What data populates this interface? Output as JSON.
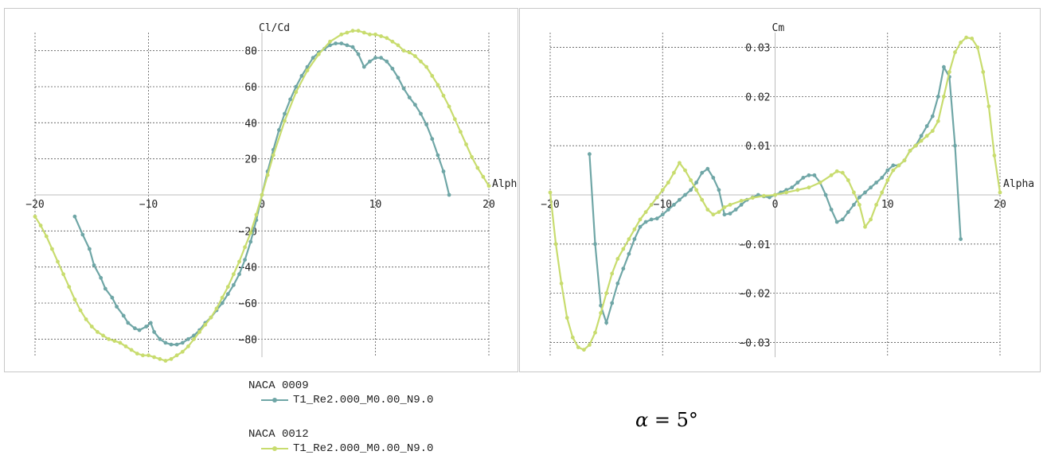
{
  "colors": {
    "series_a": "#6fa6a6",
    "series_b": "#c8dc6e",
    "grid": "#5a5a5a",
    "axis": "#bdbdbd"
  },
  "legend": {
    "groups": [
      {
        "airfoil": "NACA 0009",
        "label": "T1_Re2.000_M0.00_N9.0",
        "color": "#6fa6a6"
      },
      {
        "airfoil": "NACA 0012",
        "label": "T1_Re2.000_M0.00_N9.0",
        "color": "#c8dc6e"
      }
    ]
  },
  "formula": {
    "symbol": "α",
    "equals": "= 5°"
  },
  "chart_data": [
    {
      "type": "line",
      "title": "",
      "ylabel": "Cl/Cd",
      "xlabel": "Alpha",
      "xlim": [
        -20,
        20
      ],
      "ylim": [
        -90,
        90
      ],
      "xticks": [
        -20,
        -10,
        0,
        10,
        20
      ],
      "yticks": [
        -80,
        -60,
        -40,
        -20,
        0,
        20,
        40,
        60,
        80
      ],
      "grid": true,
      "series": [
        {
          "name": "T1_Re2.000_M0.00_N9.0",
          "color": "#6fa6a6",
          "x": [
            -16.5,
            -15.8,
            -15.2,
            -14.8,
            -14.2,
            -13.8,
            -13.2,
            -12.8,
            -12.2,
            -11.8,
            -11.2,
            -10.8,
            -10.2,
            -9.8,
            -9.5,
            -9,
            -8.5,
            -8,
            -7.5,
            -7,
            -6.5,
            -6,
            -5.5,
            -5,
            -4.5,
            -4,
            -3.5,
            -3,
            -2.5,
            -2,
            -1.5,
            -1,
            -0.5,
            0,
            0.5,
            1,
            1.5,
            2,
            2.5,
            3,
            3.5,
            4,
            4.5,
            5,
            5.5,
            6,
            6.5,
            7,
            7.5,
            8,
            8.5,
            9,
            9.5,
            10,
            10.5,
            11,
            11.5,
            12,
            12.5,
            13,
            13.5,
            14,
            14.5,
            15,
            15.5,
            16,
            16.5
          ],
          "y": [
            -12,
            -22,
            -30,
            -39,
            -46,
            -52,
            -57,
            -62,
            -67,
            -71,
            -74,
            -75,
            -73,
            -71,
            -76,
            -80,
            -82,
            -83,
            -83,
            -82,
            -80,
            -78,
            -75,
            -71,
            -68,
            -64,
            -60,
            -55,
            -50,
            -44,
            -36,
            -26,
            -14,
            0,
            13,
            25,
            36,
            45,
            53,
            60,
            66,
            71,
            76,
            79,
            81,
            83,
            84,
            84,
            83,
            82,
            78,
            71,
            74,
            76,
            76,
            74,
            70,
            65,
            59,
            54,
            50,
            45,
            39,
            31,
            22,
            13,
            0
          ]
        },
        {
          "name": "T1_Re2.000_M0.00_N9.0",
          "color": "#c8dc6e",
          "x": [
            -20,
            -19.5,
            -19,
            -18.5,
            -18,
            -17.5,
            -17,
            -16.5,
            -16,
            -15.5,
            -15,
            -14.5,
            -14,
            -13.5,
            -13,
            -12.5,
            -12,
            -11.5,
            -11,
            -10.5,
            -10,
            -9.5,
            -9,
            -8.5,
            -8,
            -7.5,
            -7,
            -6.5,
            -6,
            -5.5,
            -5,
            -4.5,
            -4,
            -3.5,
            -3,
            -2.5,
            -2,
            -1.5,
            -1,
            -0.5,
            0,
            0.5,
            1,
            2,
            3,
            4,
            5,
            6,
            7,
            7.5,
            8,
            8.5,
            9,
            9.5,
            10,
            10.5,
            11,
            11.5,
            12,
            12.5,
            13,
            13.5,
            14,
            14.5,
            15,
            15.5,
            16,
            16.5,
            17,
            17.5,
            18,
            18.5,
            19,
            19.5,
            20
          ],
          "y": [
            -12,
            -17,
            -23,
            -30,
            -37,
            -44,
            -51,
            -58,
            -64,
            -69,
            -73,
            -76,
            -78,
            -80,
            -81,
            -82,
            -84,
            -86,
            -88,
            -89,
            -89,
            -90,
            -91,
            -92,
            -91,
            -89,
            -87,
            -84,
            -80,
            -76,
            -72,
            -68,
            -63,
            -57,
            -51,
            -44,
            -37,
            -29,
            -21,
            -11,
            0,
            11,
            22,
            41,
            57,
            69,
            78,
            85,
            89,
            90,
            91,
            91,
            90,
            89,
            89,
            88,
            87,
            85,
            83,
            80,
            79,
            77,
            74,
            71,
            66,
            61,
            55,
            49,
            42,
            35,
            28,
            21,
            15,
            10,
            5
          ]
        }
      ]
    },
    {
      "type": "line",
      "title": "",
      "ylabel": "Cm",
      "xlabel": "Alpha",
      "xlim": [
        -20,
        20
      ],
      "ylim": [
        -0.033,
        0.033
      ],
      "xticks": [
        -20,
        -10,
        0,
        10,
        20
      ],
      "yticks": [
        -0.03,
        -0.02,
        -0.01,
        0,
        0.01,
        0.02,
        0.03
      ],
      "grid": true,
      "series": [
        {
          "name": "T1_Re2.000_M0.00_N9.0",
          "color": "#6fa6a6",
          "x": [
            -16.5,
            -16,
            -15.5,
            -15,
            -14.5,
            -14,
            -13.5,
            -13,
            -12.5,
            -12,
            -11.5,
            -11,
            -10.5,
            -10,
            -9.5,
            -9,
            -8.5,
            -8,
            -7.5,
            -7,
            -6.5,
            -6,
            -5.5,
            -5,
            -4.5,
            -4,
            -3.5,
            -3,
            -2.5,
            -2,
            -1.5,
            -1,
            -0.5,
            0,
            0.5,
            1,
            1.5,
            2,
            2.5,
            3,
            3.5,
            4,
            4.5,
            5,
            5.5,
            6,
            6.5,
            7,
            7.5,
            8,
            8.5,
            9,
            9.5,
            10,
            10.5,
            11,
            11.5,
            12,
            12.5,
            13,
            13.5,
            14,
            14.5,
            15,
            15.5,
            16,
            16.5
          ],
          "y": [
            0.0083,
            -0.01,
            -0.0225,
            -0.026,
            -0.022,
            -0.018,
            -0.015,
            -0.012,
            -0.009,
            -0.0065,
            -0.0055,
            -0.005,
            -0.0048,
            -0.004,
            -0.003,
            -0.002,
            -0.001,
            0.0,
            0.001,
            0.0025,
            0.0045,
            0.0053,
            0.0035,
            0.001,
            -0.004,
            -0.0038,
            -0.003,
            -0.002,
            -0.001,
            -0.0005,
            0.0,
            -0.0003,
            -0.0005,
            0.0,
            0.0005,
            0.001,
            0.0015,
            0.0025,
            0.0035,
            0.004,
            0.004,
            0.0025,
            0.0,
            -0.003,
            -0.0055,
            -0.005,
            -0.0035,
            -0.002,
            -0.0005,
            0.0005,
            0.0015,
            0.0025,
            0.0035,
            0.005,
            0.006,
            0.006,
            0.007,
            0.009,
            0.01,
            0.012,
            0.014,
            0.016,
            0.02,
            0.026,
            0.024,
            0.01,
            -0.009
          ]
        },
        {
          "name": "T1_Re2.000_M0.00_N9.0",
          "color": "#c8dc6e",
          "x": [
            -20,
            -19.5,
            -19,
            -18.5,
            -18,
            -17.5,
            -17,
            -16.5,
            -16,
            -15.5,
            -15,
            -14.5,
            -14,
            -13.5,
            -13,
            -12.5,
            -12,
            -11.5,
            -11,
            -10.5,
            -10,
            -9.5,
            -9,
            -8.5,
            -8,
            -7.5,
            -7,
            -6.5,
            -6,
            -5.5,
            -5,
            -4.5,
            -4,
            -3,
            -2,
            -1,
            0,
            1,
            2,
            3,
            4,
            5,
            5.5,
            6,
            6.5,
            7,
            7.5,
            8,
            8.5,
            9,
            9.5,
            10,
            10.5,
            11,
            11.5,
            12,
            12.5,
            13,
            13.5,
            14,
            14.5,
            15,
            15.5,
            16,
            16.5,
            17,
            17.5,
            18,
            18.5,
            19,
            19.5,
            20
          ],
          "y": [
            0.0005,
            -0.01,
            -0.018,
            -0.025,
            -0.029,
            -0.031,
            -0.0315,
            -0.0305,
            -0.028,
            -0.024,
            -0.02,
            -0.016,
            -0.013,
            -0.011,
            -0.009,
            -0.007,
            -0.005,
            -0.0035,
            -0.002,
            -0.0005,
            0.001,
            0.0025,
            0.0045,
            0.0065,
            0.005,
            0.003,
            0.001,
            -0.001,
            -0.003,
            -0.004,
            -0.0035,
            -0.0025,
            -0.002,
            -0.0012,
            -0.0006,
            -0.0002,
            0.0,
            0.0005,
            0.001,
            0.0015,
            0.0025,
            0.004,
            0.0048,
            0.0045,
            0.003,
            0.0005,
            -0.002,
            -0.0065,
            -0.005,
            -0.002,
            0.0005,
            0.003,
            0.005,
            0.006,
            0.007,
            0.009,
            0.01,
            0.011,
            0.012,
            0.013,
            0.015,
            0.02,
            0.025,
            0.029,
            0.031,
            0.032,
            0.0318,
            0.03,
            0.025,
            0.018,
            0.008,
            0.0005
          ]
        }
      ]
    }
  ]
}
